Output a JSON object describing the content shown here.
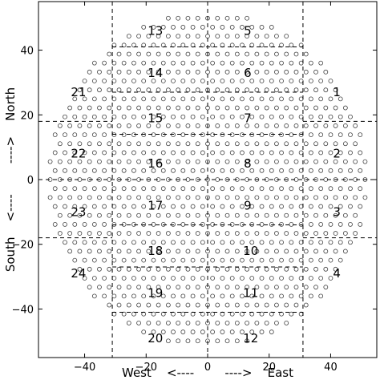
{
  "chart_data": {
    "type": "scatter",
    "title": "",
    "xlabel": "West    <----        ---->    East",
    "ylabel": "South    <----        ---->    North",
    "xlim": [
      -55,
      55
    ],
    "ylim": [
      -55,
      55
    ],
    "xticks": [
      -40,
      -20,
      0,
      20,
      40
    ],
    "yticks": [
      -40,
      -20,
      0,
      20,
      40
    ],
    "xtick_labels": [
      "−40",
      "−20",
      "0",
      "20",
      "40"
    ],
    "ytick_labels": [
      "−40",
      "−20",
      "0",
      "20",
      "40"
    ],
    "grid": false,
    "points": {
      "layout": "hexagonal grid of open circles inside a circle",
      "x_spacing": 3.2,
      "y_spacing": 2.77,
      "radius": 52
    },
    "divider_lines": {
      "vertical_x": [
        -31,
        0,
        31
      ],
      "horizontal_segments": [
        {
          "y": 18,
          "x_from": -55,
          "x_to": -31
        },
        {
          "y": -18,
          "x_from": -55,
          "x_to": -31
        },
        {
          "y": 18,
          "x_from": 31,
          "x_to": 55
        },
        {
          "y": -18,
          "x_from": 31,
          "x_to": 55
        },
        {
          "y": 41,
          "x_from": -31,
          "x_to": 31
        },
        {
          "y": 27,
          "x_from": -31,
          "x_to": 31
        },
        {
          "y": 14,
          "x_from": -31,
          "x_to": 31
        },
        {
          "y": 0,
          "x_from": -55,
          "x_to": 55
        },
        {
          "y": -14,
          "x_from": -31,
          "x_to": 31
        },
        {
          "y": -27,
          "x_from": -31,
          "x_to": 31
        },
        {
          "y": -41,
          "x_from": -31,
          "x_to": 31
        }
      ]
    },
    "regions": [
      {
        "label": "1",
        "x": 42,
        "y": 27
      },
      {
        "label": "2",
        "x": 42,
        "y": 8
      },
      {
        "label": "3",
        "x": 42,
        "y": -10
      },
      {
        "label": "4",
        "x": 42,
        "y": -29
      },
      {
        "label": "5",
        "x": 13,
        "y": 46
      },
      {
        "label": "6",
        "x": 13,
        "y": 33
      },
      {
        "label": "7",
        "x": 13,
        "y": 19
      },
      {
        "label": "8",
        "x": 13,
        "y": 5
      },
      {
        "label": "9",
        "x": 13,
        "y": -8
      },
      {
        "label": "10",
        "x": 14,
        "y": -22
      },
      {
        "label": "11",
        "x": 14,
        "y": -35
      },
      {
        "label": "12",
        "x": 14,
        "y": -49
      },
      {
        "label": "13",
        "x": -17,
        "y": 46
      },
      {
        "label": "14",
        "x": -17,
        "y": 33
      },
      {
        "label": "15",
        "x": -17,
        "y": 19
      },
      {
        "label": "16",
        "x": -17,
        "y": 5
      },
      {
        "label": "17",
        "x": -17,
        "y": -8
      },
      {
        "label": "18",
        "x": -17,
        "y": -22
      },
      {
        "label": "19",
        "x": -17,
        "y": -35
      },
      {
        "label": "20",
        "x": -17,
        "y": -49
      },
      {
        "label": "21",
        "x": -42,
        "y": 27
      },
      {
        "label": "22",
        "x": -42,
        "y": 8
      },
      {
        "label": "23",
        "x": -42,
        "y": -10
      },
      {
        "label": "24",
        "x": -42,
        "y": -29
      }
    ]
  }
}
